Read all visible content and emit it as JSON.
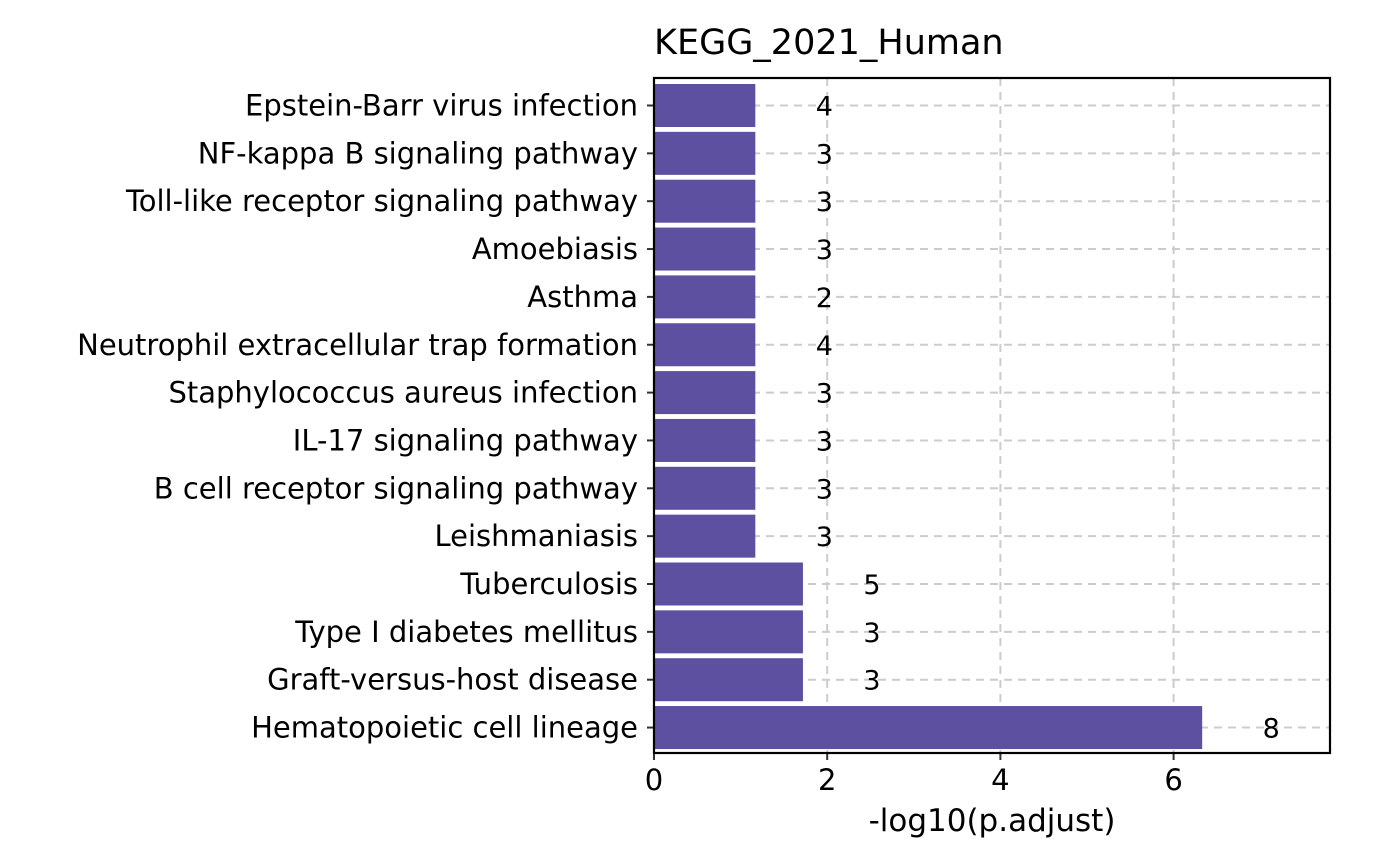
{
  "chart_data": {
    "type": "bar",
    "orientation": "horizontal",
    "title": "KEGG_2021_Human",
    "xlabel": "-log10(p.adjust)",
    "ylabel": "",
    "xlim": [
      0,
      7.8
    ],
    "x_ticks": [
      0,
      2,
      4,
      6
    ],
    "x_tick_labels": [
      "0",
      "2",
      "4",
      "6"
    ],
    "grid": "dashed vertical and horizontal",
    "bar_color": "#5E50A1",
    "categories": [
      "Epstein-Barr virus infection",
      "NF-kappa B signaling pathway",
      "Toll-like receptor signaling pathway",
      "Amoebiasis",
      "Asthma",
      "Neutrophil extracellular trap formation",
      "Staphylococcus aureus infection",
      "IL-17 signaling pathway",
      "B cell receptor signaling pathway",
      "Leishmaniasis",
      "Tuberculosis",
      "Type I diabetes mellitus",
      "Graft-versus-host disease",
      "Hematopoietic cell lineage"
    ],
    "values": [
      1.17,
      1.17,
      1.17,
      1.17,
      1.17,
      1.17,
      1.17,
      1.17,
      1.17,
      1.17,
      1.72,
      1.72,
      1.72,
      6.33
    ],
    "counts": [
      "4",
      "3",
      "3",
      "3",
      "2",
      "4",
      "3",
      "3",
      "3",
      "3",
      "5",
      "3",
      "3",
      "8"
    ]
  }
}
